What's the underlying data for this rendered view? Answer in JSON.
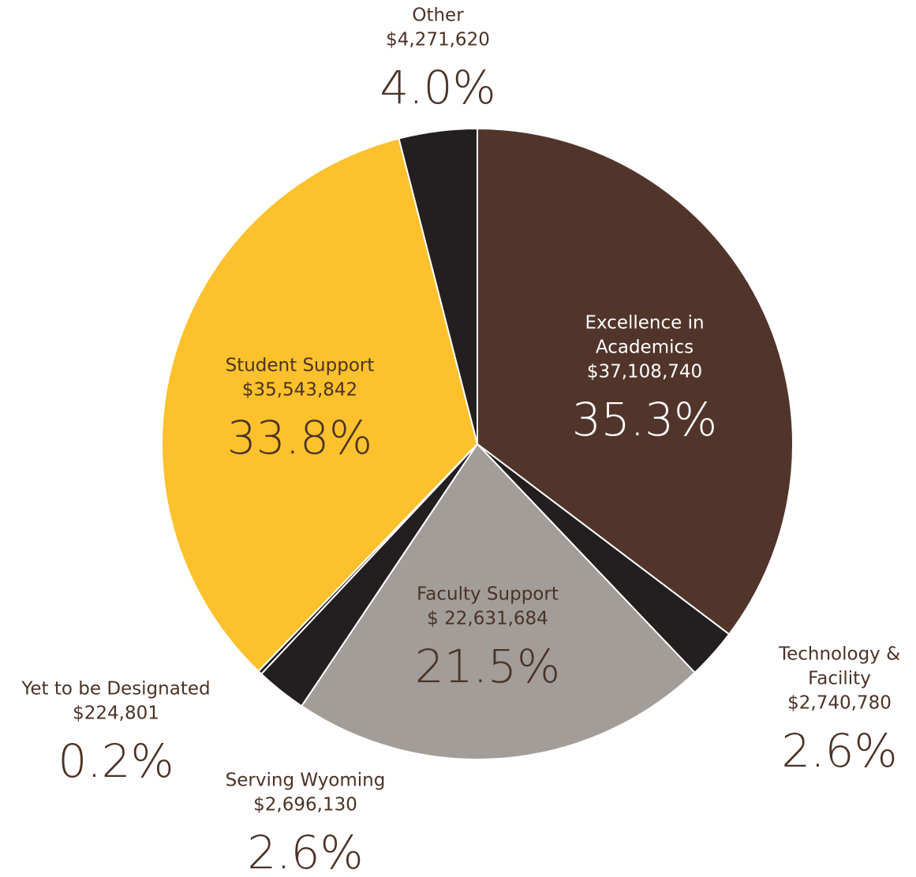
{
  "chart_data": {
    "type": "pie",
    "title": "",
    "slices": [
      {
        "name": "Excellence in Academics",
        "amount": "$37,108,740",
        "percent": "35.3%",
        "value": 35.3,
        "color": "#51352b",
        "label_color": "#ffffff",
        "name_lines": [
          "Excellence in",
          "Academics"
        ]
      },
      {
        "name": "Technology & Facility",
        "amount": "$2,740,780",
        "percent": "2.6%",
        "value": 2.6,
        "color": "#231f20",
        "label_color": "#4a3226",
        "name_lines": [
          "Technology &",
          "Facility"
        ]
      },
      {
        "name": "Faculty Support",
        "amount": "$ 22,631,684",
        "percent": "21.5%",
        "value": 21.5,
        "color": "#a29d98",
        "label_color": "#4a3226",
        "name_lines": [
          "Faculty Support"
        ]
      },
      {
        "name": "Serving Wyoming",
        "amount": "$2,696,130",
        "percent": "2.6%",
        "value": 2.6,
        "color": "#231f20",
        "label_color": "#4a3226",
        "name_lines": [
          "Serving Wyoming"
        ]
      },
      {
        "name": "Yet to be Designated",
        "amount": "$224,801",
        "percent": "0.2%",
        "value": 0.2,
        "color": "#231f20",
        "label_color": "#4a3226",
        "name_lines": [
          "Yet to be Designated"
        ]
      },
      {
        "name": "Student Support",
        "amount": "$35,543,842",
        "percent": "33.8%",
        "value": 33.8,
        "color": "#fcc12d",
        "label_color": "#4a3226",
        "name_lines": [
          "Student Support"
        ]
      },
      {
        "name": "Other",
        "amount": "$4,271,620",
        "percent": "4.0%",
        "value": 4.0,
        "color": "#231f20",
        "label_color": "#4a3226",
        "name_lines": [
          "Other"
        ]
      }
    ],
    "legend": "none",
    "start_angle": "12 o'clock",
    "direction": "clockwise"
  }
}
